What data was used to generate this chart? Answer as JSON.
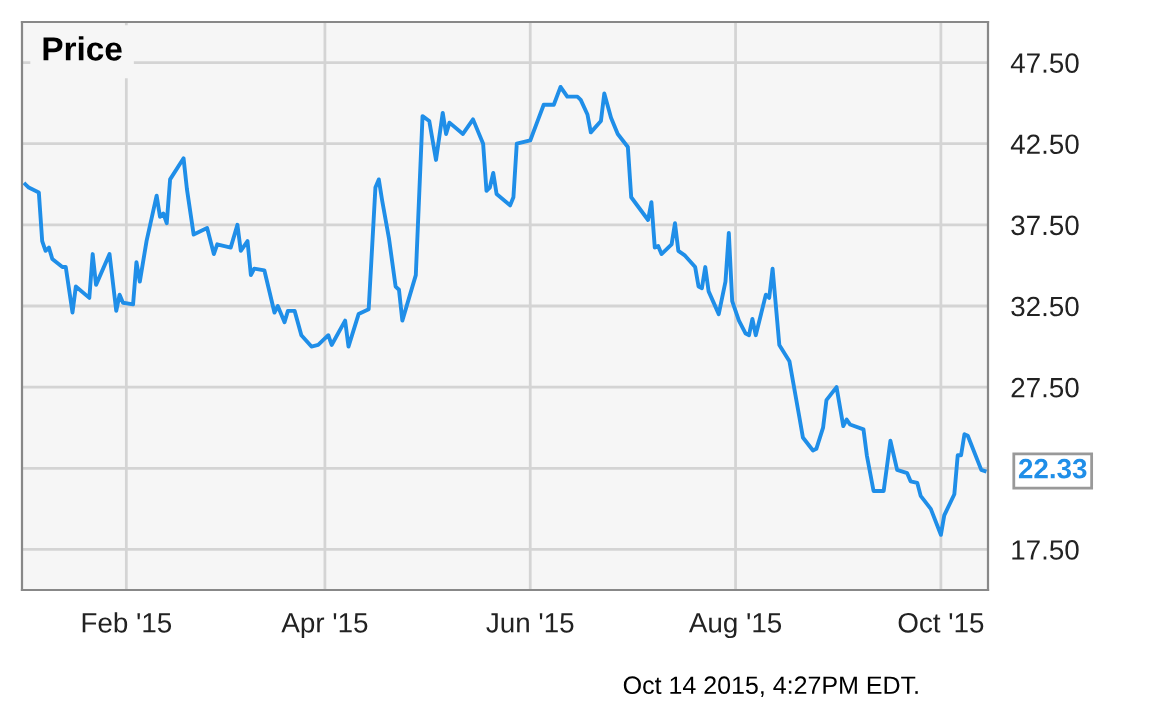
{
  "chart_data": {
    "type": "line",
    "title": "Price",
    "x": [
      "2015-01-02",
      "2015-01-03",
      "2015-01-06",
      "2015-01-07",
      "2015-01-08",
      "2015-01-09",
      "2015-01-10",
      "2015-01-13",
      "2015-01-14",
      "2015-01-16",
      "2015-01-17",
      "2015-01-21",
      "2015-01-22",
      "2015-01-23",
      "2015-01-27",
      "2015-01-29",
      "2015-01-30",
      "2015-01-31",
      "2015-02-03",
      "2015-02-04",
      "2015-02-05",
      "2015-02-07",
      "2015-02-10",
      "2015-02-11",
      "2015-02-12",
      "2015-02-13",
      "2015-02-14",
      "2015-02-18",
      "2015-02-19",
      "2015-02-21",
      "2015-02-25",
      "2015-02-27",
      "2015-02-28",
      "2015-03-04",
      "2015-03-06",
      "2015-03-07",
      "2015-03-09",
      "2015-03-10",
      "2015-03-11",
      "2015-03-14",
      "2015-03-17",
      "2015-03-18",
      "2015-03-20",
      "2015-03-21",
      "2015-03-23",
      "2015-03-25",
      "2015-03-28",
      "2015-03-30",
      "2015-04-02",
      "2015-04-03",
      "2015-04-07",
      "2015-04-08",
      "2015-04-11",
      "2015-04-14",
      "2015-04-16",
      "2015-04-17",
      "2015-04-18",
      "2015-04-20",
      "2015-04-22",
      "2015-04-23",
      "2015-04-24",
      "2015-04-28",
      "2015-04-30",
      "2015-05-02",
      "2015-05-04",
      "2015-05-06",
      "2015-05-07",
      "2015-05-08",
      "2015-05-12",
      "2015-05-15",
      "2015-05-18",
      "2015-05-19",
      "2015-05-20",
      "2015-05-21",
      "2015-05-22",
      "2015-05-26",
      "2015-05-27",
      "2015-05-28",
      "2015-06-01",
      "2015-06-03",
      "2015-06-05",
      "2015-06-08",
      "2015-06-10",
      "2015-06-12",
      "2015-06-15",
      "2015-06-16",
      "2015-06-18",
      "2015-06-19",
      "2015-06-22",
      "2015-06-23",
      "2015-06-25",
      "2015-06-27",
      "2015-06-30",
      "2015-07-01",
      "2015-07-06",
      "2015-07-07",
      "2015-07-08",
      "2015-07-09",
      "2015-07-10",
      "2015-07-13",
      "2015-07-14",
      "2015-07-15",
      "2015-07-17",
      "2015-07-20",
      "2015-07-21",
      "2015-07-22",
      "2015-07-23",
      "2015-07-24",
      "2015-07-27",
      "2015-07-29",
      "2015-07-30",
      "2015-07-31",
      "2015-08-02",
      "2015-08-04",
      "2015-08-05",
      "2015-08-06",
      "2015-08-07",
      "2015-08-10",
      "2015-08-11",
      "2015-08-12",
      "2015-08-14",
      "2015-08-17",
      "2015-08-20",
      "2015-08-21",
      "2015-08-24",
      "2015-08-25",
      "2015-08-27",
      "2015-08-28",
      "2015-08-31",
      "2015-09-02",
      "2015-09-03",
      "2015-09-04",
      "2015-09-08",
      "2015-09-09",
      "2015-09-11",
      "2015-09-14",
      "2015-09-16",
      "2015-09-18",
      "2015-09-21",
      "2015-09-22",
      "2015-09-24",
      "2015-09-25",
      "2015-09-28",
      "2015-10-01",
      "2015-10-02",
      "2015-10-05",
      "2015-10-06",
      "2015-10-07",
      "2015-10-08",
      "2015-10-09",
      "2015-10-13",
      "2015-10-14"
    ],
    "series": [
      {
        "color": "#1f8ee8",
        "values": [
          40.0,
          39.8,
          39.5,
          36.5,
          35.9,
          36.1,
          35.4,
          34.9,
          34.9,
          32.1,
          33.7,
          33.0,
          35.7,
          33.8,
          35.7,
          32.2,
          33.2,
          32.7,
          32.6,
          35.2,
          34.0,
          36.5,
          39.3,
          38.0,
          38.2,
          37.6,
          40.3,
          41.6,
          39.7,
          36.9,
          37.3,
          35.7,
          36.3,
          36.1,
          37.5,
          35.9,
          36.5,
          34.4,
          34.8,
          34.7,
          32.1,
          32.5,
          31.5,
          32.2,
          32.2,
          30.7,
          30.0,
          30.1,
          30.7,
          30.1,
          31.6,
          30.0,
          32.0,
          32.3,
          39.8,
          40.3,
          39.0,
          36.7,
          33.7,
          33.5,
          31.6,
          34.4,
          44.2,
          43.9,
          41.5,
          44.4,
          43.1,
          43.8,
          43.1,
          44.0,
          42.5,
          39.6,
          39.8,
          40.7,
          39.4,
          38.7,
          39.2,
          42.5,
          42.7,
          43.8,
          44.9,
          44.9,
          46.0,
          45.4,
          45.4,
          45.2,
          44.3,
          43.2,
          43.9,
          45.6,
          44.1,
          43.1,
          42.3,
          39.2,
          37.8,
          38.9,
          36.1,
          36.2,
          35.7,
          36.3,
          37.6,
          35.9,
          35.6,
          34.9,
          33.7,
          33.6,
          34.9,
          33.4,
          32.0,
          34.0,
          37.0,
          32.8,
          31.6,
          30.8,
          30.7,
          31.7,
          30.7,
          33.2,
          33.0,
          34.8,
          30.1,
          29.1,
          25.6,
          24.4,
          23.6,
          23.7,
          25.0,
          26.7,
          27.5,
          25.1,
          25.5,
          25.2,
          24.9,
          23.3,
          21.1,
          21.1,
          24.2,
          22.4,
          22.2,
          21.7,
          21.6,
          20.8,
          20.0,
          18.4,
          19.6,
          20.9,
          23.3,
          23.3,
          24.6,
          24.5,
          22.4,
          22.33
        ]
      }
    ],
    "xlim": [
      "2015-01-01",
      "2015-10-15"
    ],
    "xticks": [
      {
        "value": "2015-02-01",
        "label": "Feb '15"
      },
      {
        "value": "2015-04-01",
        "label": "Apr '15"
      },
      {
        "value": "2015-06-01",
        "label": "Jun '15"
      },
      {
        "value": "2015-08-01",
        "label": "Aug '15"
      },
      {
        "value": "2015-10-01",
        "label": "Oct '15"
      }
    ],
    "ylim": [
      15,
      50
    ],
    "yticks": [
      {
        "value": 17.5,
        "label": "17.50"
      },
      {
        "value": 22.5,
        "label": null
      },
      {
        "value": 27.5,
        "label": "27.50"
      },
      {
        "value": 32.5,
        "label": "32.50"
      },
      {
        "value": 37.5,
        "label": "37.50"
      },
      {
        "value": 42.5,
        "label": "42.50"
      },
      {
        "value": 47.5,
        "label": "47.50"
      }
    ],
    "grid": true,
    "annotations": [
      {
        "text": "22.33",
        "x": "2015-10-14",
        "y": 22.33
      },
      "Oct 14 2015, 4:27PM EDT."
    ]
  }
}
